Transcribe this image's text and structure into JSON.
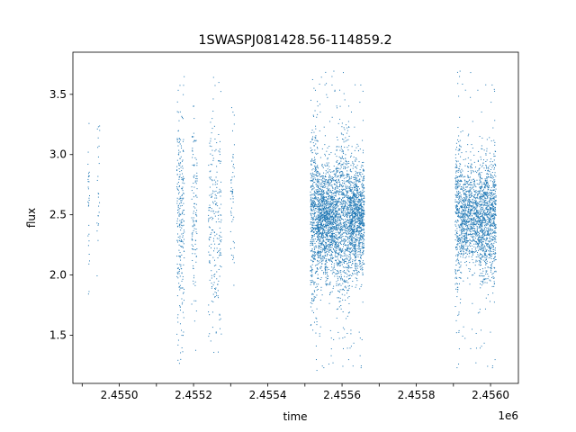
{
  "chart_data": {
    "type": "scatter",
    "title": "1SWASPJ081428.56-114859.2",
    "xlabel": "time",
    "ylabel": "flux",
    "x_offset_label": "1e6",
    "xlim": [
      2454875,
      2456075
    ],
    "ylim": [
      1.1,
      3.85
    ],
    "x_ticks": [
      2454900,
      2455000,
      2455100,
      2455200,
      2455300,
      2455400,
      2455500,
      2455600,
      2455700,
      2455800,
      2455900,
      2456000
    ],
    "x_tick_labels": [
      "",
      "2.4550",
      "",
      "2.4552",
      "",
      "2.4554",
      "",
      "2.4556",
      "",
      "2.4558",
      "",
      "2.4560"
    ],
    "y_ticks": [
      1.5,
      2.0,
      2.5,
      3.0,
      3.5
    ],
    "y_tick_labels": [
      "1.5",
      "2.0",
      "2.5",
      "3.0",
      "3.5"
    ],
    "grid": false,
    "marker_color": "#1f77b4",
    "series": [
      {
        "clusters": [
          {
            "x_range": [
              2454915,
              2454920
            ],
            "center": 2.65,
            "spread": 0.3,
            "n": 30
          },
          {
            "x_range": [
              2454940,
              2454948
            ],
            "center": 2.7,
            "spread": 0.35,
            "n": 25
          },
          {
            "x_range": [
              2455155,
              2455175
            ],
            "center": 2.45,
            "spread": 0.45,
            "n": 260
          },
          {
            "x_range": [
              2455195,
              2455210
            ],
            "center": 2.45,
            "spread": 0.45,
            "n": 120
          },
          {
            "x_range": [
              2455240,
              2455275
            ],
            "center": 2.45,
            "spread": 0.45,
            "n": 230
          },
          {
            "x_range": [
              2455300,
              2455310
            ],
            "center": 2.7,
            "spread": 0.3,
            "n": 50
          },
          {
            "x_range": [
              2455515,
              2455535
            ],
            "center": 2.45,
            "spread": 0.4,
            "n": 500
          },
          {
            "x_range": [
              2455535,
              2455585
            ],
            "center": 2.45,
            "spread": 0.22,
            "n": 1400
          },
          {
            "x_range": [
              2455585,
              2455620
            ],
            "center": 2.45,
            "spread": 0.35,
            "n": 800
          },
          {
            "x_range": [
              2455620,
              2455660
            ],
            "center": 2.48,
            "spread": 0.22,
            "n": 1100
          },
          {
            "x_range": [
              2455905,
              2455920
            ],
            "center": 2.5,
            "spread": 0.35,
            "n": 300
          },
          {
            "x_range": [
              2455920,
              2455970
            ],
            "center": 2.48,
            "spread": 0.2,
            "n": 900
          },
          {
            "x_range": [
              2455970,
              2456015
            ],
            "center": 2.47,
            "spread": 0.25,
            "n": 1000
          }
        ]
      }
    ]
  }
}
